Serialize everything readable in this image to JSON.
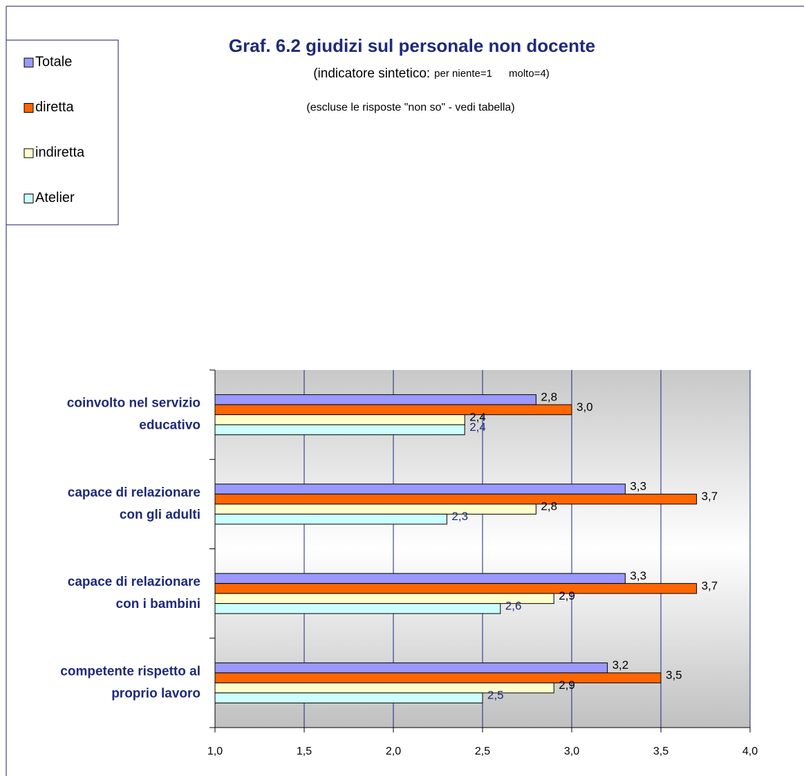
{
  "chart_data": {
    "type": "hbar",
    "title": "Graf. 6.2   giudizi sul personale non docente",
    "subtitle": [
      "(indicatore sintetico:",
      "per niente=1",
      "molto=4)"
    ],
    "note": "(escluse le risposte \"non so\" - vedi tabella)",
    "categories": [
      [
        "coinvolto nel servizio",
        "educativo"
      ],
      [
        "capace di relazionare",
        "con gli adulti"
      ],
      [
        "capace di relazionare",
        "con i bambini"
      ],
      [
        "competente rispetto al",
        "proprio lavoro"
      ]
    ],
    "series": [
      {
        "name": "Totale",
        "color": "#9999ff",
        "values": [
          2.8,
          3.3,
          3.3,
          3.2
        ],
        "value_labels": [
          "2,8",
          "3,3",
          "3,3",
          "3,2"
        ]
      },
      {
        "name": "diretta",
        "color": "#ff6600",
        "values": [
          3.0,
          3.7,
          3.7,
          3.5
        ],
        "value_labels": [
          "3,0",
          "3,7",
          "3,7",
          "3,5"
        ]
      },
      {
        "name": "indiretta",
        "color": "#ffffcc",
        "values": [
          2.4,
          2.8,
          2.9,
          2.9
        ],
        "value_labels": [
          "2,4",
          "2,8",
          "2,9",
          "2,9"
        ]
      },
      {
        "name": "Atelier",
        "color": "#ccffff",
        "values": [
          2.4,
          2.3,
          2.6,
          2.5
        ],
        "value_labels": [
          "2,4",
          "2,3",
          "2,6",
          "2,5"
        ]
      }
    ],
    "xlim": [
      1,
      4
    ],
    "xticks": [
      {
        "value": 1,
        "label": "1,0"
      },
      {
        "value": 1.5,
        "label": "1,5"
      },
      {
        "value": 2,
        "label": "2,0"
      },
      {
        "value": 2.5,
        "label": "2,5"
      },
      {
        "value": 3,
        "label": "3,0"
      },
      {
        "value": 3.5,
        "label": "3,5"
      },
      {
        "value": 4,
        "label": "4,0"
      }
    ],
    "grid": true,
    "legend": "top-left"
  }
}
